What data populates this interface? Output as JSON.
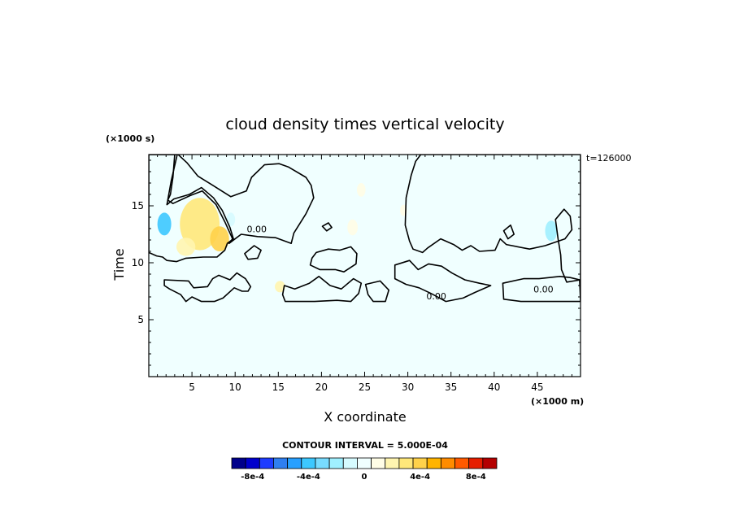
{
  "chart_data": {
    "type": "heatmap",
    "title": "cloud density times vertical velocity",
    "xlabel": "X coordinate",
    "ylabel": "Time",
    "x_unit": "(×1000 m)",
    "y_unit": "(×1000 s)",
    "time_stamp": "t=126000",
    "xlim": [
      0,
      50
    ],
    "ylim": [
      0,
      19.5
    ],
    "x_ticks": [
      5,
      10,
      15,
      20,
      25,
      30,
      35,
      40,
      45
    ],
    "y_ticks": [
      5,
      10,
      15
    ],
    "contour_interval_label": "CONTOUR INTERVAL = 5.000E-04",
    "contour_labels": [
      {
        "text": "0.00",
        "x": 12.5,
        "y": 12.9
      },
      {
        "text": "0.00",
        "x": 33.3,
        "y": 7.0
      },
      {
        "text": "0.00",
        "x": 45.7,
        "y": 7.6
      }
    ],
    "colorbar": {
      "levels": [
        -0.0009,
        -0.0008,
        -0.0007,
        -0.0006,
        -0.0005,
        -0.0004,
        -0.0003,
        -0.0002,
        -0.0001,
        0,
        0.0001,
        0.0002,
        0.0003,
        0.0004,
        0.0005,
        0.0006,
        0.0007,
        0.0008,
        0.0009
      ],
      "colors": [
        "#00008b",
        "#0000cd",
        "#1e3cff",
        "#2f7ff0",
        "#28a0ff",
        "#3cc8ff",
        "#78dcff",
        "#a0f0ff",
        "#d6fbff",
        "#f0ffff",
        "#fffde6",
        "#fff5b0",
        "#ffe87a",
        "#ffd24a",
        "#ffb400",
        "#ff8c00",
        "#ff5a00",
        "#e61e00",
        "#b40000"
      ],
      "tick_labels": [
        {
          "text": "-8e-4",
          "value": -0.0008
        },
        {
          "text": "-4e-4",
          "value": -0.0004
        },
        {
          "text": "0",
          "value": 0
        },
        {
          "text": "4e-4",
          "value": 0.0004
        },
        {
          "text": "8e-4",
          "value": 0.0008
        }
      ]
    },
    "zero_contour_regions": [
      {
        "name": "west-updraft",
        "points": [
          [
            0,
            19.5
          ],
          [
            3,
            19.5
          ],
          [
            2.8,
            17.5
          ],
          [
            2.5,
            16
          ],
          [
            2.2,
            15.5
          ],
          [
            2.8,
            15.2
          ],
          [
            4.8,
            15.9
          ],
          [
            6.2,
            16.3
          ],
          [
            7.8,
            15.1
          ],
          [
            8.8,
            13.6
          ],
          [
            9.7,
            12.1
          ],
          [
            9.3,
            11.7
          ],
          [
            10.7,
            12.5
          ],
          [
            12.6,
            12.3
          ],
          [
            14.7,
            12.2
          ],
          [
            16.5,
            11.7
          ],
          [
            16.8,
            12.6
          ],
          [
            18.2,
            14.3
          ],
          [
            19.1,
            15.7
          ],
          [
            18.8,
            16.8
          ],
          [
            18.2,
            17.5
          ],
          [
            16.2,
            18.4
          ],
          [
            15.1,
            18.7
          ],
          [
            13.4,
            18.6
          ],
          [
            11.9,
            17.5
          ],
          [
            11.3,
            16.3
          ],
          [
            9.5,
            15.8
          ],
          [
            7.2,
            16.9
          ],
          [
            5.7,
            17.6
          ],
          [
            4.4,
            18.8
          ],
          [
            3.4,
            19.5
          ],
          [
            3,
            19.5
          ],
          [
            0,
            19.5
          ]
        ]
      },
      {
        "name": "left-block",
        "points": [
          [
            0,
            19.5
          ],
          [
            3.3,
            19.5
          ],
          [
            2.6,
            17.2
          ],
          [
            2.1,
            15.1
          ],
          [
            2.9,
            15.6
          ],
          [
            4.7,
            16.0
          ],
          [
            6.1,
            16.6
          ],
          [
            7.5,
            15.7
          ],
          [
            8.5,
            14.6
          ],
          [
            9.4,
            13.1
          ],
          [
            9.8,
            12.1
          ],
          [
            9.1,
            11.7
          ],
          [
            8.8,
            11.1
          ],
          [
            7.9,
            10.5
          ],
          [
            6.3,
            10.5
          ],
          [
            4.3,
            10.4
          ],
          [
            3.2,
            10.1
          ],
          [
            2.1,
            10.2
          ],
          [
            1.6,
            10.5
          ],
          [
            0.9,
            10.6
          ],
          [
            0,
            10.9
          ]
        ]
      },
      {
        "name": "east-updraft",
        "points": [
          [
            31.5,
            19.5
          ],
          [
            50,
            19.5
          ],
          [
            50,
            8.5
          ],
          [
            48.4,
            8.3
          ],
          [
            47.8,
            9.4
          ],
          [
            47.7,
            10.7
          ],
          [
            47.4,
            12.1
          ],
          [
            47.1,
            13.8
          ],
          [
            48.1,
            14.7
          ],
          [
            48.8,
            14.1
          ],
          [
            49.0,
            12.9
          ],
          [
            48.2,
            12.1
          ],
          [
            45.9,
            11.5
          ],
          [
            44.1,
            11.2
          ],
          [
            41.4,
            11.6
          ],
          [
            40.7,
            12.1
          ],
          [
            40.1,
            11.1
          ],
          [
            38.3,
            11.0
          ],
          [
            37.3,
            11.5
          ],
          [
            36.3,
            11.1
          ],
          [
            35.3,
            11.6
          ],
          [
            33.8,
            12.1
          ],
          [
            32.3,
            11.3
          ],
          [
            31.7,
            10.9
          ],
          [
            30.6,
            11.2
          ],
          [
            30.2,
            11.9
          ],
          [
            29.7,
            13.3
          ],
          [
            29.8,
            15.7
          ],
          [
            30.4,
            17.7
          ],
          [
            30.9,
            18.9
          ]
        ]
      },
      {
        "name": "low-band-1",
        "points": [
          [
            1.8,
            8.5
          ],
          [
            4.6,
            8.4
          ],
          [
            5.2,
            7.8
          ],
          [
            6.8,
            7.9
          ],
          [
            7.4,
            8.6
          ],
          [
            8.1,
            8.9
          ],
          [
            9.4,
            8.5
          ],
          [
            10.2,
            9.1
          ],
          [
            11.2,
            8.6
          ],
          [
            11.8,
            7.9
          ],
          [
            11.5,
            7.5
          ],
          [
            10.8,
            7.5
          ],
          [
            9.9,
            7.8
          ],
          [
            8.6,
            6.9
          ],
          [
            7.6,
            6.6
          ],
          [
            6.1,
            6.6
          ],
          [
            5.0,
            7.0
          ],
          [
            4.3,
            6.6
          ],
          [
            3.7,
            7.2
          ],
          [
            2.4,
            7.7
          ],
          [
            1.8,
            8.0
          ]
        ]
      },
      {
        "name": "mid-cell",
        "points": [
          [
            15.7,
            8.0
          ],
          [
            16.9,
            7.7
          ],
          [
            18.6,
            8.2
          ],
          [
            19.7,
            8.8
          ],
          [
            21.0,
            8.0
          ],
          [
            22.3,
            7.7
          ],
          [
            23.7,
            8.6
          ],
          [
            24.6,
            8.2
          ],
          [
            24.3,
            7.3
          ],
          [
            23.4,
            6.6
          ],
          [
            21.8,
            6.7
          ],
          [
            19.2,
            6.6
          ],
          [
            17.6,
            6.6
          ],
          [
            15.8,
            6.6
          ],
          [
            15.5,
            7.2
          ]
        ]
      },
      {
        "name": "central-cell",
        "points": [
          [
            19.4,
            10.9
          ],
          [
            20.8,
            11.2
          ],
          [
            22.1,
            11.1
          ],
          [
            23.4,
            11.4
          ],
          [
            24.1,
            10.8
          ],
          [
            24.0,
            9.9
          ],
          [
            22.6,
            9.2
          ],
          [
            21.6,
            9.4
          ],
          [
            19.8,
            9.4
          ],
          [
            18.7,
            9.8
          ],
          [
            18.9,
            10.4
          ]
        ]
      },
      {
        "name": "low-right",
        "points": [
          [
            25.1,
            8.1
          ],
          [
            26.8,
            8.4
          ],
          [
            27.8,
            7.6
          ],
          [
            27.4,
            6.6
          ],
          [
            26.0,
            6.6
          ],
          [
            25.4,
            7.2
          ]
        ]
      },
      {
        "name": "right-band",
        "points": [
          [
            28.5,
            9.8
          ],
          [
            30.2,
            10.2
          ],
          [
            31.2,
            9.4
          ],
          [
            32.4,
            9.9
          ],
          [
            33.9,
            9.7
          ],
          [
            35.1,
            9.1
          ],
          [
            36.6,
            8.5
          ],
          [
            38.3,
            8.2
          ],
          [
            39.6,
            8.0
          ],
          [
            37.8,
            7.4
          ],
          [
            36.4,
            6.9
          ],
          [
            34.4,
            6.6
          ],
          [
            32.7,
            7.3
          ],
          [
            31.3,
            7.8
          ],
          [
            29.8,
            8.1
          ],
          [
            28.5,
            8.6
          ]
        ]
      },
      {
        "name": "far-right-low",
        "points": [
          [
            41.0,
            8.2
          ],
          [
            43.4,
            8.6
          ],
          [
            45.2,
            8.6
          ],
          [
            47.6,
            8.8
          ],
          [
            48.8,
            8.7
          ],
          [
            49.9,
            8.5
          ],
          [
            50,
            6.6
          ],
          [
            47.7,
            6.6
          ],
          [
            45.9,
            6.6
          ],
          [
            43.1,
            6.6
          ],
          [
            41.1,
            6.8
          ]
        ]
      },
      {
        "name": "small-blob-a",
        "points": [
          [
            11.1,
            10.8
          ],
          [
            12.2,
            11.5
          ],
          [
            13.0,
            11.1
          ],
          [
            12.6,
            10.4
          ],
          [
            11.5,
            10.3
          ]
        ]
      },
      {
        "name": "small-blob-b",
        "points": [
          [
            20.1,
            13.2
          ],
          [
            20.8,
            13.5
          ],
          [
            21.2,
            13.1
          ],
          [
            20.6,
            12.8
          ]
        ]
      },
      {
        "name": "small-blob-c",
        "points": [
          [
            41.1,
            12.8
          ],
          [
            41.9,
            13.3
          ],
          [
            42.3,
            12.5
          ],
          [
            41.6,
            12.1
          ]
        ]
      }
    ],
    "positive_blobs": [
      {
        "name": "yellow-west-1",
        "cx": 5.9,
        "cy": 13.4,
        "rx": 2.3,
        "ry": 2.3,
        "value": 0.00032
      },
      {
        "name": "yellow-west-2",
        "cx": 8.2,
        "cy": 12.1,
        "rx": 1.1,
        "ry": 1.1,
        "value": 0.00045
      },
      {
        "name": "yellow-west-3",
        "cx": 4.3,
        "cy": 11.4,
        "rx": 1.1,
        "ry": 0.8,
        "value": 0.00018
      },
      {
        "name": "yellow-mid-1",
        "cx": 23.6,
        "cy": 13.1,
        "rx": 0.6,
        "ry": 0.7,
        "value": 0.00014
      },
      {
        "name": "yellow-mid-2",
        "cx": 24.6,
        "cy": 16.4,
        "rx": 0.5,
        "ry": 0.6,
        "value": 0.00012
      },
      {
        "name": "yellow-low",
        "cx": 15.2,
        "cy": 7.9,
        "rx": 0.6,
        "ry": 0.5,
        "value": 0.00016
      },
      {
        "name": "yellow-east",
        "cx": 29.5,
        "cy": 14.6,
        "rx": 0.4,
        "ry": 0.5,
        "value": 0.00011
      }
    ],
    "negative_blobs": [
      {
        "name": "blue-west",
        "cx": 1.8,
        "cy": 13.4,
        "rx": 0.8,
        "ry": 1.0,
        "value": -0.00035
      },
      {
        "name": "blue-west-2",
        "cx": 9.5,
        "cy": 13.8,
        "rx": 0.5,
        "ry": 0.6,
        "value": -0.00012
      },
      {
        "name": "blue-east",
        "cx": 46.6,
        "cy": 12.8,
        "rx": 0.7,
        "ry": 0.9,
        "value": -0.00016
      }
    ]
  }
}
